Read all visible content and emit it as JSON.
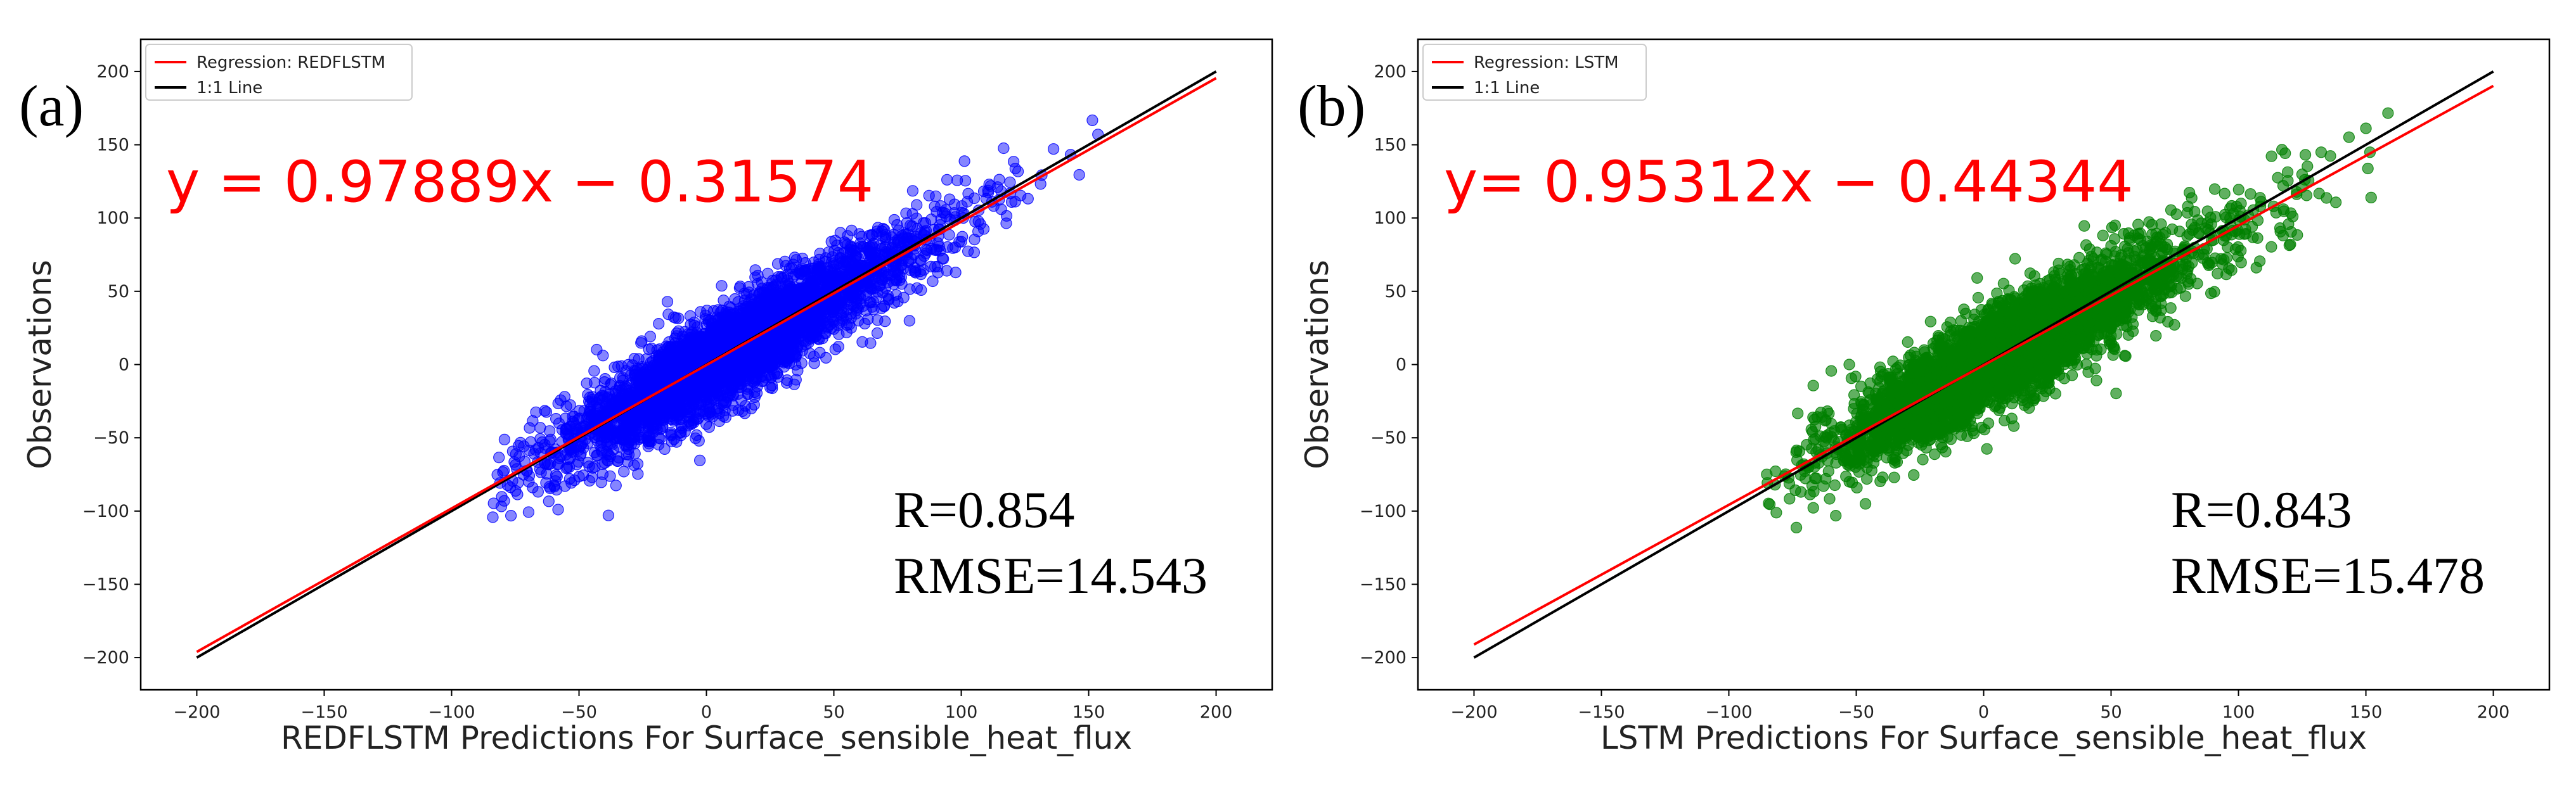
{
  "chart_data": [
    {
      "type": "scatter",
      "panel_label": "(a)",
      "xlabel": "REDFLSTM Predictions For Surface_sensible_heat_flux",
      "ylabel": "Observations",
      "xlim": [
        -222,
        222
      ],
      "ylim": [
        -222,
        222
      ],
      "xticks": [
        -200,
        -150,
        -100,
        -50,
        0,
        50,
        100,
        150,
        200
      ],
      "yticks": [
        -200,
        -150,
        -100,
        -50,
        0,
        50,
        100,
        150,
        200
      ],
      "xtick_labels": [
        "−200",
        "−150",
        "−100",
        "−50",
        "0",
        "50",
        "100",
        "150",
        "200"
      ],
      "ytick_labels": [
        "−200",
        "−150",
        "−100",
        "−50",
        "0",
        "50",
        "100",
        "150",
        "200"
      ],
      "point_color": "#0000ff",
      "point_count": 4200,
      "point_x_range": [
        -84,
        158
      ],
      "correlation": 0.854,
      "slope": 0.97889,
      "intercept": -0.31574,
      "legend": {
        "position": "top-left",
        "items": [
          {
            "label": "Regression: REDFLSTM",
            "color": "#ff0000"
          },
          {
            "label": "1:1 Line",
            "color": "#000000"
          }
        ]
      },
      "regression_line": {
        "x": [
          -200,
          200
        ],
        "slope": 0.97889,
        "intercept": -0.31574,
        "color": "#ff0000"
      },
      "identity_line": {
        "x": [
          -200,
          200
        ],
        "color": "#000000"
      },
      "equation_text": "y = 0.97889x − 0.31574",
      "equation_color": "#ff0000",
      "r_text": "R=0.854",
      "rmse_text": "RMSE=14.543"
    },
    {
      "type": "scatter",
      "panel_label": "(b)",
      "xlabel": "LSTM Predictions For Surface_sensible_heat_flux",
      "ylabel": "Observations",
      "xlim": [
        -222,
        222
      ],
      "ylim": [
        -222,
        222
      ],
      "xticks": [
        -200,
        -150,
        -100,
        -50,
        0,
        50,
        100,
        150,
        200
      ],
      "yticks": [
        -200,
        -150,
        -100,
        -50,
        0,
        50,
        100,
        150,
        200
      ],
      "xtick_labels": [
        "−200",
        "−150",
        "−100",
        "−50",
        "0",
        "50",
        "100",
        "150",
        "200"
      ],
      "ytick_labels": [
        "−200",
        "−150",
        "−100",
        "−50",
        "0",
        "50",
        "100",
        "150",
        "200"
      ],
      "point_color": "#008000",
      "point_count": 4200,
      "point_x_range": [
        -88,
        160
      ],
      "correlation": 0.843,
      "slope": 0.95312,
      "intercept": -0.44344,
      "legend": {
        "position": "top-left",
        "items": [
          {
            "label": "Regression: LSTM",
            "color": "#ff0000"
          },
          {
            "label": "1:1 Line",
            "color": "#000000"
          }
        ]
      },
      "regression_line": {
        "x": [
          -200,
          200
        ],
        "slope": 0.95312,
        "intercept": -0.44344,
        "color": "#ff0000"
      },
      "identity_line": {
        "x": [
          -200,
          200
        ],
        "color": "#000000"
      },
      "equation_text": "y= 0.95312x − 0.44344",
      "equation_color": "#ff0000",
      "r_text": "R=0.843",
      "rmse_text": "RMSE=15.478"
    }
  ]
}
